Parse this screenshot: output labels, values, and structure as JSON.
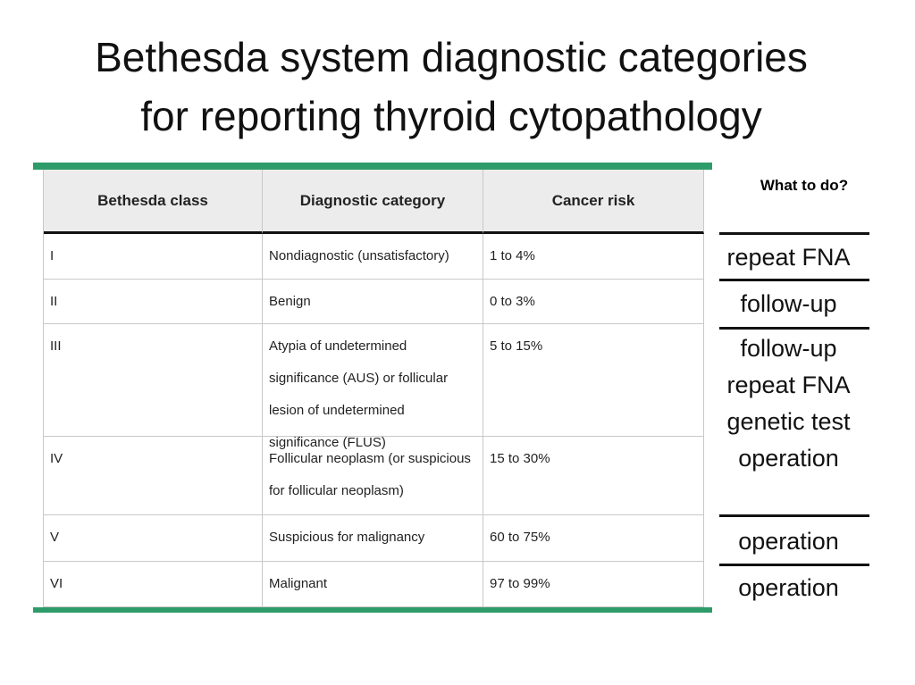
{
  "title": [
    "Bethesda system diagnostic categories",
    "for reporting thyroid cytopathology"
  ],
  "table": {
    "headers": [
      "Bethesda class",
      "Diagnostic category",
      "Cancer risk"
    ],
    "rows": [
      [
        "I",
        "Nondiagnostic (unsatisfactory)",
        "1 to 4%"
      ],
      [
        "II",
        "Benign",
        "0 to 3%"
      ],
      [
        "III",
        "Atypia of undetermined significance (AUS) or follicular lesion of undetermined significance (FLUS)",
        "5 to 15%"
      ],
      [
        "IV",
        "Follicular neoplasm (or suspicious for follicular neoplasm)",
        "15 to 30%"
      ],
      [
        "V",
        "Suspicious for malignancy",
        "60 to 75%"
      ],
      [
        "VI",
        "Malignant",
        "97 to 99%"
      ]
    ]
  },
  "actions": {
    "heading": "What to do?",
    "items": [
      [
        "repeat FNA"
      ],
      [
        "follow-up"
      ],
      [
        "follow-up",
        "repeat FNA",
        "genetic test",
        "operation"
      ],
      [
        "operation"
      ],
      [
        "operation"
      ]
    ]
  }
}
